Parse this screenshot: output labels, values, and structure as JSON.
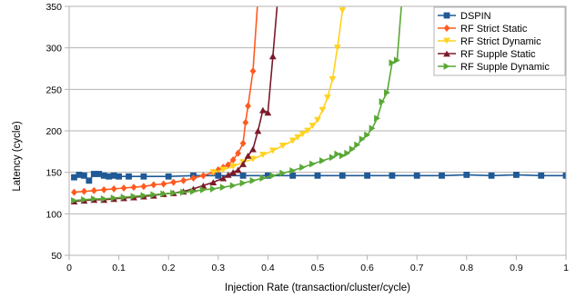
{
  "chart_data": {
    "type": "line",
    "xlabel": "Injection Rate (transaction/cluster/cycle)",
    "ylabel": "Latency (cycle)",
    "xlim": [
      0,
      1
    ],
    "ylim": [
      50,
      350
    ],
    "x_ticks": [
      "0",
      "0.1",
      "0.2",
      "0.3",
      "0.4",
      "0.5",
      "0.6",
      "0.7",
      "0.8",
      "0.9",
      "1"
    ],
    "y_ticks": [
      "50",
      "100",
      "150",
      "200",
      "250",
      "300",
      "350"
    ],
    "grid": "horizontal",
    "legend_position": "top-right",
    "series": [
      {
        "name": "DSPIN",
        "color": "#1f5a96",
        "marker": "square",
        "points": [
          [
            0.01,
            144
          ],
          [
            0.02,
            147
          ],
          [
            0.03,
            146
          ],
          [
            0.04,
            140
          ],
          [
            0.05,
            148
          ],
          [
            0.06,
            148
          ],
          [
            0.07,
            146
          ],
          [
            0.08,
            145
          ],
          [
            0.09,
            146
          ],
          [
            0.1,
            145
          ],
          [
            0.12,
            145
          ],
          [
            0.15,
            145
          ],
          [
            0.2,
            145
          ],
          [
            0.25,
            146
          ],
          [
            0.3,
            146
          ],
          [
            0.35,
            146
          ],
          [
            0.4,
            146
          ],
          [
            0.45,
            146
          ],
          [
            0.5,
            146
          ],
          [
            0.55,
            146
          ],
          [
            0.6,
            146
          ],
          [
            0.65,
            146
          ],
          [
            0.7,
            146
          ],
          [
            0.75,
            146
          ],
          [
            0.8,
            147
          ],
          [
            0.85,
            146
          ],
          [
            0.9,
            147
          ],
          [
            0.95,
            146
          ],
          [
            1.0,
            146
          ]
        ]
      },
      {
        "name": "RF Strict Static",
        "color": "#ff5a1f",
        "marker": "diamond",
        "points": [
          [
            0.01,
            126
          ],
          [
            0.03,
            127
          ],
          [
            0.05,
            128
          ],
          [
            0.07,
            129
          ],
          [
            0.09,
            130
          ],
          [
            0.11,
            131
          ],
          [
            0.13,
            132
          ],
          [
            0.15,
            133
          ],
          [
            0.17,
            135
          ],
          [
            0.19,
            136
          ],
          [
            0.21,
            138
          ],
          [
            0.23,
            140
          ],
          [
            0.25,
            143
          ],
          [
            0.27,
            146
          ],
          [
            0.29,
            150
          ],
          [
            0.3,
            153
          ],
          [
            0.31,
            156
          ],
          [
            0.32,
            159
          ],
          [
            0.33,
            165
          ],
          [
            0.34,
            173
          ],
          [
            0.35,
            185
          ],
          [
            0.355,
            210
          ],
          [
            0.36,
            230
          ],
          [
            0.37,
            272
          ],
          [
            0.38,
            360
          ]
        ]
      },
      {
        "name": "RF Strict Dynamic",
        "color": "#ffd21f",
        "marker": "triangle-down",
        "points": [
          [
            0.29,
            150
          ],
          [
            0.31,
            153
          ],
          [
            0.33,
            157
          ],
          [
            0.35,
            162
          ],
          [
            0.37,
            166
          ],
          [
            0.39,
            171
          ],
          [
            0.41,
            176
          ],
          [
            0.43,
            182
          ],
          [
            0.45,
            188
          ],
          [
            0.46,
            192
          ],
          [
            0.47,
            196
          ],
          [
            0.48,
            200
          ],
          [
            0.49,
            206
          ],
          [
            0.5,
            213
          ],
          [
            0.51,
            225
          ],
          [
            0.52,
            240
          ],
          [
            0.53,
            262
          ],
          [
            0.54,
            300
          ],
          [
            0.55,
            345
          ],
          [
            0.56,
            365
          ]
        ]
      },
      {
        "name": "RF Supple Static",
        "color": "#7b1a2a",
        "marker": "triangle-up",
        "points": [
          [
            0.01,
            115
          ],
          [
            0.03,
            116
          ],
          [
            0.05,
            117
          ],
          [
            0.07,
            117
          ],
          [
            0.09,
            118
          ],
          [
            0.11,
            119
          ],
          [
            0.13,
            120
          ],
          [
            0.15,
            121
          ],
          [
            0.17,
            122
          ],
          [
            0.19,
            124
          ],
          [
            0.21,
            125
          ],
          [
            0.23,
            127
          ],
          [
            0.25,
            130
          ],
          [
            0.27,
            134
          ],
          [
            0.29,
            138
          ],
          [
            0.31,
            143
          ],
          [
            0.32,
            147
          ],
          [
            0.33,
            150
          ],
          [
            0.34,
            153
          ],
          [
            0.35,
            160
          ],
          [
            0.36,
            170
          ],
          [
            0.37,
            178
          ],
          [
            0.38,
            200
          ],
          [
            0.39,
            225
          ],
          [
            0.4,
            222
          ],
          [
            0.41,
            290
          ],
          [
            0.42,
            360
          ]
        ]
      },
      {
        "name": "RF Supple Dynamic",
        "color": "#59a835",
        "marker": "triangle-right",
        "points": [
          [
            0.01,
            116
          ],
          [
            0.03,
            117
          ],
          [
            0.05,
            118
          ],
          [
            0.07,
            118
          ],
          [
            0.09,
            119
          ],
          [
            0.11,
            120
          ],
          [
            0.13,
            121
          ],
          [
            0.15,
            122
          ],
          [
            0.17,
            123
          ],
          [
            0.19,
            124
          ],
          [
            0.21,
            125
          ],
          [
            0.23,
            126
          ],
          [
            0.25,
            127
          ],
          [
            0.27,
            129
          ],
          [
            0.29,
            130
          ],
          [
            0.31,
            132
          ],
          [
            0.33,
            134
          ],
          [
            0.35,
            137
          ],
          [
            0.37,
            140
          ],
          [
            0.39,
            143
          ],
          [
            0.41,
            146
          ],
          [
            0.43,
            149
          ],
          [
            0.45,
            152
          ],
          [
            0.47,
            156
          ],
          [
            0.49,
            160
          ],
          [
            0.51,
            164
          ],
          [
            0.53,
            168
          ],
          [
            0.54,
            172
          ],
          [
            0.55,
            170
          ],
          [
            0.56,
            173
          ],
          [
            0.57,
            178
          ],
          [
            0.58,
            183
          ],
          [
            0.59,
            190
          ],
          [
            0.6,
            195
          ],
          [
            0.61,
            203
          ],
          [
            0.62,
            215
          ],
          [
            0.63,
            235
          ],
          [
            0.64,
            246
          ],
          [
            0.65,
            282
          ],
          [
            0.66,
            285
          ],
          [
            0.67,
            360
          ]
        ]
      }
    ]
  }
}
